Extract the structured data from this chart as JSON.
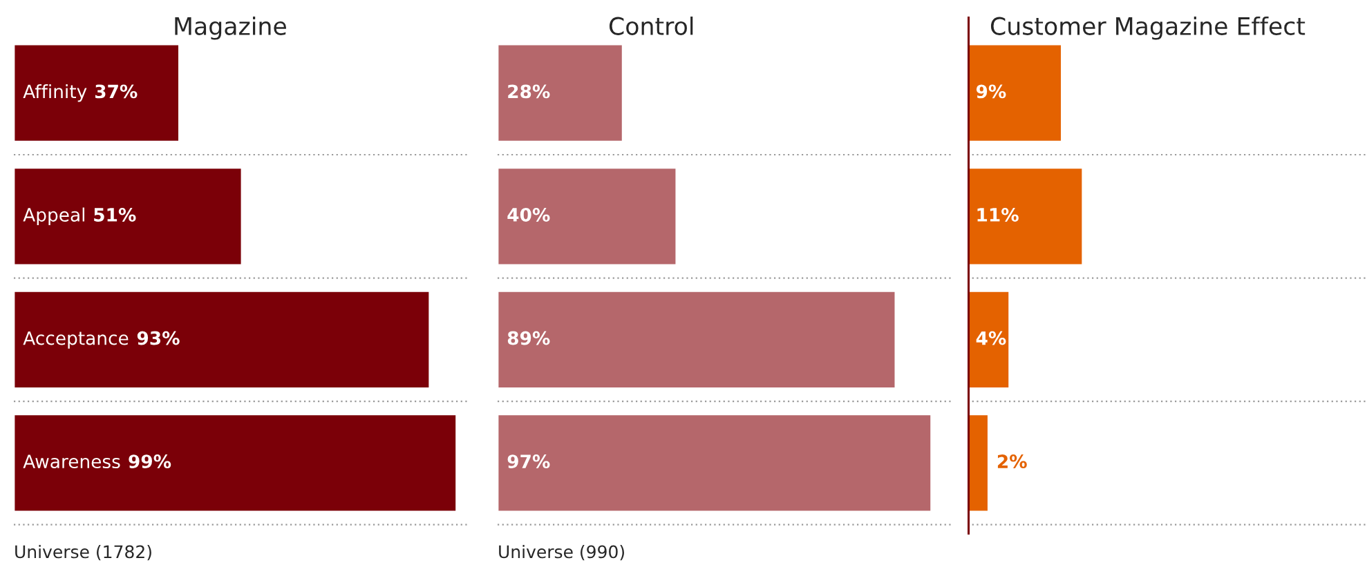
{
  "chart_data": [
    {
      "type": "bar",
      "orientation": "horizontal",
      "title": "Magazine",
      "categories": [
        "Affinity",
        "Appeal",
        "Acceptance",
        "Awareness"
      ],
      "values": [
        37,
        51,
        93,
        99
      ],
      "value_labels": [
        "37%",
        "51%",
        "93%",
        "99%"
      ],
      "color": "#7b0008",
      "xlim": [
        0,
        102
      ],
      "grid": "y",
      "annotations": [
        "Universe (1782)"
      ]
    },
    {
      "type": "bar",
      "orientation": "horizontal",
      "title": "Control",
      "categories": [
        null,
        null,
        null,
        null
      ],
      "values": [
        28,
        40,
        89,
        97
      ],
      "value_labels": [
        "28%",
        "40%",
        "89%",
        "97%"
      ],
      "color": "#b5676b",
      "xlim": [
        0,
        102
      ],
      "grid": "y",
      "annotations": [
        "Universe (990)"
      ]
    },
    {
      "type": "bar",
      "orientation": "horizontal",
      "title": "Customer Magazine Effect",
      "categories": [
        null,
        null,
        null,
        null
      ],
      "values": [
        9,
        11,
        4,
        2
      ],
      "value_labels": [
        "9%",
        "11%",
        "4%",
        "2%"
      ],
      "color": "#e46200",
      "xlim": [
        0,
        38
      ],
      "grid": "y",
      "ref_lines": [
        {
          "axis": "x",
          "value": 0,
          "color": "#7b0008"
        }
      ]
    }
  ]
}
